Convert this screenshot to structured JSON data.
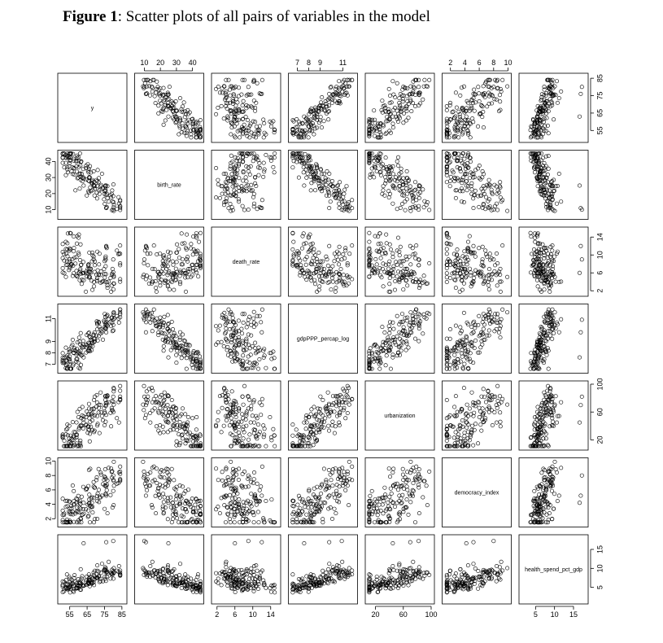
{
  "figure": {
    "title_lead": "Figure 1",
    "title_rest": ": Scatter plots of all pairs of variables in the model"
  },
  "chart_data": {
    "type": "scatter",
    "kind": "pairs-matrix",
    "n_observations": 150,
    "point_style": "open-circle",
    "grid": false,
    "variables": [
      {
        "name": "y",
        "range": [
          50,
          86
        ],
        "ticks": [
          55,
          65,
          75,
          85
        ]
      },
      {
        "name": "birth_rate",
        "range": [
          6,
          45
        ],
        "ticks": [
          10,
          20,
          30,
          40
        ]
      },
      {
        "name": "death_rate",
        "range": [
          1.5,
          15.5
        ],
        "ticks": [
          2,
          6,
          10,
          14
        ]
      },
      {
        "name": "gdpPPP_percap_log",
        "range": [
          6.5,
          12
        ],
        "ticks": [
          7,
          8,
          9,
          11
        ]
      },
      {
        "name": "urbanization",
        "range": [
          10,
          100
        ],
        "ticks": [
          20,
          60,
          100
        ]
      },
      {
        "name": "democracy_index",
        "range": [
          1.3,
          10
        ],
        "ticks": [
          2,
          4,
          6,
          8,
          10
        ]
      },
      {
        "name": "health_spend_pct_gdp",
        "range": [
          1.5,
          18
        ],
        "ticks": [
          5,
          10,
          15
        ]
      }
    ],
    "tick_sides": {
      "top": [
        1,
        3,
        5
      ],
      "bottom": [
        0,
        2,
        4,
        6
      ],
      "left": [
        1,
        3,
        5
      ],
      "right": [
        0,
        2,
        4,
        6
      ]
    },
    "tick_label_subsets": {
      "gdpPPP_percap_log": [
        7,
        8,
        9,
        11
      ]
    }
  }
}
